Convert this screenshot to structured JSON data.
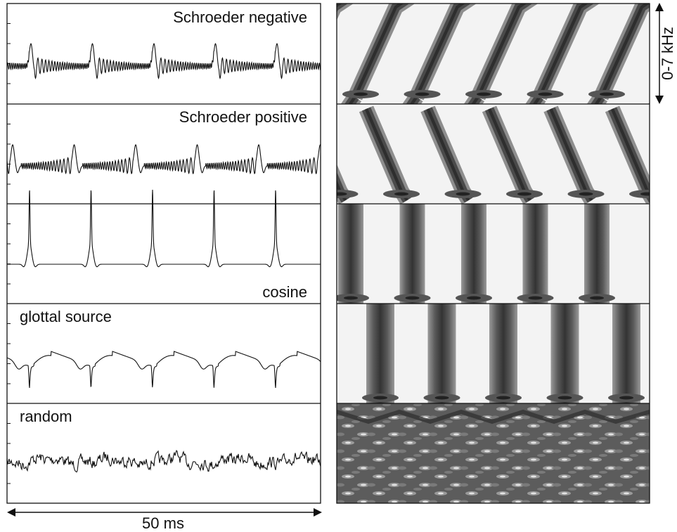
{
  "panels": [
    {
      "label": "Schroeder negative",
      "type": "schroeder-negative"
    },
    {
      "label": "Schroeder positive",
      "type": "schroeder-positive"
    },
    {
      "label": "cosine",
      "type": "cosine"
    },
    {
      "label": "glottal source",
      "type": "glottal"
    },
    {
      "label": "random",
      "type": "random"
    }
  ],
  "time_scale_label": "50 ms",
  "frequency_range_label": "0-7 kHz",
  "periods_per_panel": 5,
  "colors": {
    "stroke": "#111111",
    "spectro_light": "#f2f2f2",
    "spectro_mid": "#8a8a8a",
    "spectro_dark": "#3c3c3c"
  }
}
